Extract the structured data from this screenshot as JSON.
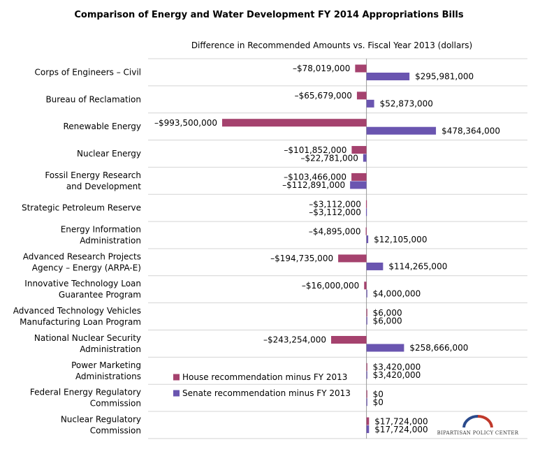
{
  "chart_data": {
    "type": "bar",
    "orientation": "horizontal",
    "title": "Comparison of Energy and Water Development FY 2014 Appropriations Bills",
    "subtitle": "Difference in Recommended Amounts vs. Fiscal Year 2013 (dollars)",
    "categories": [
      [
        "Corps of Engineers – Civil"
      ],
      [
        "Bureau of Reclamation"
      ],
      [
        "Renewable Energy"
      ],
      [
        "Nuclear Energy"
      ],
      [
        "Fossil Energy Research",
        "and Development"
      ],
      [
        "Strategic Petroleum Reserve"
      ],
      [
        "Energy Information",
        "Administration"
      ],
      [
        "Advanced Research Projects",
        "Agency – Energy (ARPA-E)"
      ],
      [
        "Innovative Technology Loan",
        "Guarantee Program"
      ],
      [
        "Advanced Technology Vehicles",
        "Manufacturing Loan Program"
      ],
      [
        "National Nuclear Security",
        "Administration"
      ],
      [
        "Power Marketing",
        "Administrations"
      ],
      [
        "Federal Energy Regulatory",
        "Commission"
      ],
      [
        "Nuclear Regulatory",
        "Commission"
      ]
    ],
    "series": [
      {
        "name": "House recommendation minus FY 2013",
        "color": "#a5426e",
        "values": [
          -78019000,
          -65679000,
          -993500000,
          -101852000,
          -103466000,
          -3112000,
          -4895000,
          -194735000,
          -16000000,
          6000,
          -243254000,
          3420000,
          0,
          17724000
        ],
        "labels": [
          "–$78,019,000",
          "–$65,679,000",
          "–$993,500,000",
          "–$101,852,000",
          "–$103,466,000",
          "–$3,112,000",
          "–$4,895,000",
          "–$194,735,000",
          "–$16,000,000",
          "$6,000",
          "–$243,254,000",
          "$3,420,000",
          "$0",
          "$17,724,000"
        ]
      },
      {
        "name": "Senate recommendation minus FY 2013",
        "color": "#6a55b0",
        "values": [
          295981000,
          52873000,
          478364000,
          -22781000,
          -112891000,
          -3112000,
          12105000,
          114265000,
          4000000,
          6000,
          258666000,
          3420000,
          0,
          17724000
        ],
        "labels": [
          "$295,981,000",
          "$52,873,000",
          "$478,364,000",
          "–$22,781,000",
          "–$112,891,000",
          "–$3,112,000",
          "$12,105,000",
          "$114,265,000",
          "$4,000,000",
          "$6,000",
          "$258,666,000",
          "$3,420,000",
          "$0",
          "$17,724,000"
        ]
      }
    ],
    "legend": "inside, lower-left of plot",
    "gridlines": "horizontal separators between categories",
    "axis_color": "#999999",
    "grid_color": "#d4d4d4"
  },
  "logo": {
    "text": "BIPARTISAN POLICY CENTER",
    "arc_colors": [
      "#2a4a8c",
      "#c0392b"
    ]
  }
}
